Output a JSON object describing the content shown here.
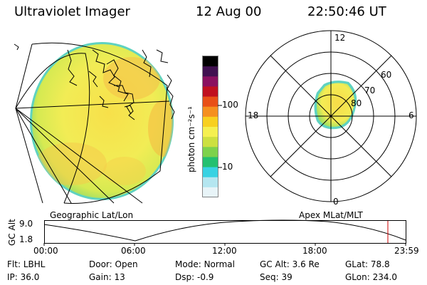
{
  "header": {
    "instrument": "Ultraviolet Imager",
    "date": "12 Aug 00",
    "time": "22:50:46 UT"
  },
  "left_panel": {
    "caption": "Geographic Lat/Lon"
  },
  "right_panel": {
    "caption": "Apex MLat/MLT",
    "mlt_labels": [
      "12",
      "18",
      "6",
      "0"
    ],
    "mlat_labels": [
      "60",
      "70",
      "80"
    ]
  },
  "colorbar": {
    "unit_label": "photon cm⁻²s⁻¹",
    "tick_labels": [
      "100",
      "10"
    ],
    "colors": [
      "#e8f4f8",
      "#b4e6f0",
      "#38d2e2",
      "#24c070",
      "#7ed24c",
      "#cde040",
      "#f5f050",
      "#f8d020",
      "#f59020",
      "#e85018",
      "#c01020",
      "#8a1060",
      "#401050",
      "#000000"
    ]
  },
  "altitude_plot": {
    "y_label": "GC Alt",
    "y_ticks": [
      "9.0",
      "1.8"
    ],
    "x_ticks": [
      "00:00",
      "06:00",
      "12:00",
      "18:00",
      "23:59"
    ],
    "current_time_marker_color": "#cc0000"
  },
  "info": {
    "row1": [
      {
        "label": "Flt:",
        "value": "LBHL"
      },
      {
        "label": "Door:",
        "value": "Open"
      },
      {
        "label": "Mode:",
        "value": "Normal"
      },
      {
        "label": "GC Alt:",
        "value": "3.6 Re"
      },
      {
        "label": "GLat:",
        "value": "78.8"
      }
    ],
    "row2": [
      {
        "label": "IP:",
        "value": "36.0"
      },
      {
        "label": "Gain:",
        "value": "13"
      },
      {
        "label": "Dsp:",
        "value": "-0.9"
      },
      {
        "label": "Seq:",
        "value": "39"
      },
      {
        "label": "GLon:",
        "value": "234.0"
      }
    ]
  }
}
